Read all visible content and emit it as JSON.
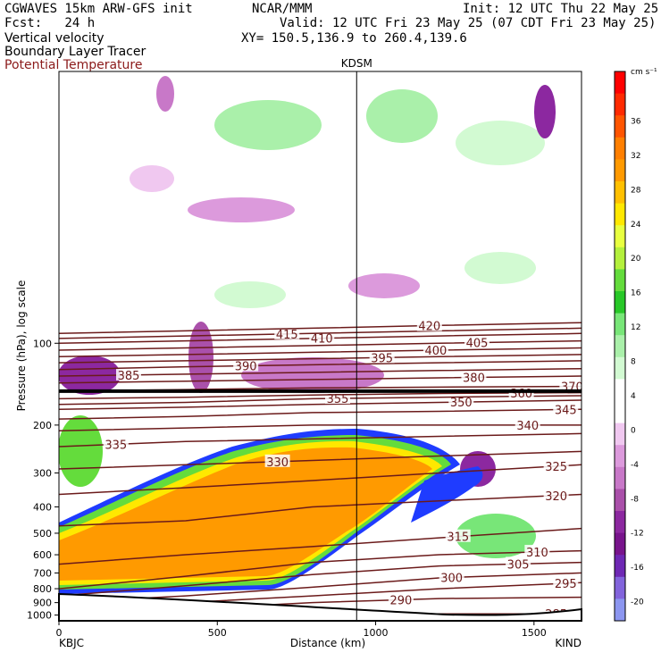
{
  "header": {
    "model": "CGWAVES 15km ARW-GFS init",
    "fcst": "Fcst:   24 h",
    "field1": "Vertical velocity",
    "field2": "Boundary Layer Tracer",
    "field3": "Potential Temperature",
    "org": "NCAR/MMM",
    "init": "Init: 12 UTC Thu 22 May 25",
    "valid": "Valid: 12 UTC Fri 23 May 25 (07 CDT Fri 23 May 25)",
    "xy": "XY= 150.5,136.9 to 260.4,139.6",
    "field3_color": "#8b1a1a"
  },
  "chart_data": {
    "type": "heatmap",
    "title": "",
    "xlabel": "Distance (km)",
    "ylabel": "Pressure (hPa), log scale",
    "xlim": [
      0,
      1650
    ],
    "x_ticks": [
      0,
      500,
      1000,
      1500
    ],
    "x_tick_labels": [
      "0",
      "500",
      "1000",
      "1500"
    ],
    "y_scale": "log",
    "ylim": [
      1050,
      10
    ],
    "y_ticks": [
      100,
      200,
      300,
      400,
      500,
      600,
      700,
      800,
      900,
      1000
    ],
    "y_tick_labels": [
      "100",
      "200",
      "300",
      "400",
      "500",
      "600",
      "700",
      "800",
      "900",
      "1000"
    ],
    "stations": [
      {
        "name": "KBJC",
        "x": 0
      },
      {
        "name": "KDSM",
        "x": 940
      },
      {
        "name": "KIND",
        "x": 1650
      }
    ],
    "colorbar": {
      "units": "cm s⁻¹",
      "labels": [
        "36",
        "32",
        "28",
        "24",
        "20",
        "16",
        "12",
        "8",
        "4",
        "0",
        "-4",
        "-8",
        "-12",
        "-16",
        "-20"
      ],
      "colors": [
        "#ff0000",
        "#ff2a00",
        "#ff5500",
        "#ff7f00",
        "#ff9a00",
        "#ffc000",
        "#ffe800",
        "#e8ff40",
        "#b4f03c",
        "#64dc3c",
        "#28c828",
        "#78e678",
        "#aaf0aa",
        "#d2fad2",
        "#ffffff",
        "#ffffff",
        "#f0c8f0",
        "#dc9adc",
        "#c878c8",
        "#aa50aa",
        "#8c28a0",
        "#78148c",
        "#6e28b4",
        "#8264dc",
        "#8c96f0"
      ]
    },
    "theta_series": [
      {
        "value": 285,
        "x": [
          0,
          400,
          800,
          1200,
          1650
        ],
        "p": [
          1000,
          1000,
          990,
          990,
          990
        ],
        "label_x": 1570
      },
      {
        "value": 290,
        "x": [
          0,
          400,
          800,
          1200,
          1650
        ],
        "p": [
          960,
          950,
          900,
          870,
          860
        ],
        "label_x": 1080
      },
      {
        "value": 295,
        "x": [
          0,
          400,
          800,
          1200,
          1650
        ],
        "p": [
          930,
          900,
          850,
          800,
          760
        ],
        "label_x": 1600
      },
      {
        "value": 300,
        "x": [
          0,
          400,
          800,
          1200,
          1650
        ],
        "p": [
          900,
          850,
          790,
          730,
          700
        ],
        "label_x": 1240
      },
      {
        "value": 305,
        "x": [
          0,
          400,
          800,
          1200,
          1650
        ],
        "p": [
          850,
          780,
          710,
          660,
          640
        ],
        "label_x": 1450
      },
      {
        "value": 310,
        "x": [
          0,
          400,
          800,
          1200,
          1650
        ],
        "p": [
          800,
          720,
          640,
          600,
          580
        ],
        "label_x": 1510
      },
      {
        "value": 315,
        "x": [
          0,
          400,
          800,
          1200,
          1650
        ],
        "p": [
          650,
          600,
          560,
          520,
          480
        ],
        "label_x": 1260
      },
      {
        "value": 320,
        "x": [
          0,
          400,
          800,
          1200,
          1650
        ],
        "p": [
          470,
          450,
          400,
          380,
          360
        ],
        "label_x": 1570
      },
      {
        "value": 325,
        "x": [
          0,
          400,
          800,
          1200,
          1650
        ],
        "p": [
          360,
          340,
          320,
          300,
          280
        ],
        "label_x": 1570
      },
      {
        "value": 330,
        "x": [
          0,
          400,
          800,
          1200,
          1650
        ],
        "p": [
          290,
          280,
          270,
          260,
          250
        ],
        "label_x": 690
      },
      {
        "value": 335,
        "x": [
          0,
          400,
          800,
          1200,
          1650
        ],
        "p": [
          240,
          230,
          225,
          220,
          215
        ],
        "label_x": 180
      },
      {
        "value": 340,
        "x": [
          0,
          400,
          800,
          1200,
          1650
        ],
        "p": [
          210,
          205,
          200,
          200,
          200
        ],
        "label_x": 1480
      },
      {
        "value": 345,
        "x": [
          0,
          400,
          800,
          1200,
          1650
        ],
        "p": [
          190,
          186,
          180,
          178,
          175
        ],
        "label_x": 1600
      },
      {
        "value": 350,
        "x": [
          0,
          400,
          800,
          1200,
          1650
        ],
        "p": [
          175,
          172,
          168,
          165,
          162
        ],
        "label_x": 1270
      },
      {
        "value": 355,
        "x": [
          0,
          400,
          800,
          1200,
          1650
        ],
        "p": [
          168,
          165,
          160,
          158,
          156
        ],
        "label_x": 880
      },
      {
        "value": 360,
        "x": [
          0,
          400,
          800,
          1200,
          1650
        ],
        "p": [
          160,
          158,
          155,
          153,
          152
        ],
        "label_x": 1460
      },
      {
        "value": 370,
        "x": [
          0,
          400,
          800,
          1200,
          1650
        ],
        "p": [
          150,
          148,
          146,
          145,
          144
        ],
        "label_x": 1620
      },
      {
        "value": 380,
        "x": [
          0,
          400,
          800,
          1200,
          1650
        ],
        "p": [
          140,
          138,
          136,
          134,
          132
        ],
        "label_x": 1310
      },
      {
        "value": 385,
        "x": [
          0,
          400,
          800,
          1200,
          1650
        ],
        "p": [
          132,
          130,
          128,
          126,
          124
        ],
        "label_x": 220
      },
      {
        "value": 390,
        "x": [
          0,
          400,
          800,
          1200,
          1650
        ],
        "p": [
          125,
          122,
          120,
          118,
          116
        ],
        "label_x": 590
      },
      {
        "value": 395,
        "x": [
          0,
          400,
          800,
          1200,
          1650
        ],
        "p": [
          118,
          116,
          114,
          112,
          110
        ],
        "label_x": 1020
      },
      {
        "value": 400,
        "x": [
          0,
          400,
          800,
          1200,
          1650
        ],
        "p": [
          112,
          110,
          108,
          106,
          104
        ],
        "label_x": 1190
      },
      {
        "value": 405,
        "x": [
          0,
          400,
          800,
          1200,
          1650
        ],
        "p": [
          106,
          104,
          102,
          100,
          98
        ],
        "label_x": 1320
      },
      {
        "value": 410,
        "x": [
          0,
          400,
          800,
          1200,
          1650
        ],
        "p": [
          100,
          98,
          96,
          94,
          92
        ],
        "label_x": 830
      },
      {
        "value": 415,
        "x": [
          0,
          400,
          800,
          1200,
          1650
        ],
        "p": [
          96,
          94,
          92,
          90,
          88
        ],
        "label_x": 720
      },
      {
        "value": 420,
        "x": [
          0,
          400,
          800,
          1200,
          1650
        ],
        "p": [
          92,
          90,
          88,
          86,
          84
        ],
        "label_x": 1170
      }
    ],
    "tropopause_p": 150
  }
}
